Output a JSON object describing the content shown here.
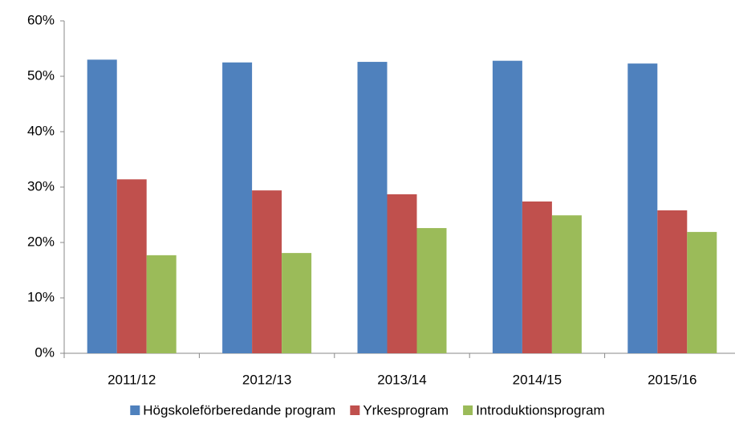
{
  "chart_data": {
    "type": "bar",
    "categories": [
      "2011/12",
      "2012/13",
      "2013/14",
      "2014/15",
      "2015/16"
    ],
    "series": [
      {
        "name": "Högskoleförberedande program",
        "color": "#4f81bd",
        "values": [
          53.0,
          52.5,
          52.6,
          52.8,
          52.3
        ]
      },
      {
        "name": "Yrkesprogram",
        "color": "#c0504d",
        "values": [
          31.4,
          29.4,
          28.7,
          27.4,
          25.8
        ]
      },
      {
        "name": "Introduktionsprogram",
        "color": "#9bbb59",
        "values": [
          17.7,
          18.1,
          22.6,
          24.9,
          21.9
        ]
      }
    ],
    "ylim": [
      0,
      60
    ],
    "yticks": [
      {
        "value": 0,
        "label": "0%"
      },
      {
        "value": 10,
        "label": "10%"
      },
      {
        "value": 20,
        "label": "20%"
      },
      {
        "value": 30,
        "label": "30%"
      },
      {
        "value": 40,
        "label": "40%"
      },
      {
        "value": 50,
        "label": "50%"
      },
      {
        "value": 60,
        "label": "60%"
      }
    ],
    "grid": false,
    "legend": "bottom"
  }
}
